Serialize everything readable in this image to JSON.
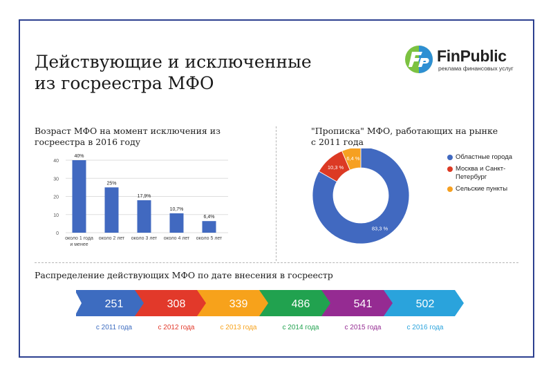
{
  "title": {
    "line1": "Действующие и исключенные",
    "line2": "из госреестра МФО"
  },
  "logo": {
    "name": "FinPublic",
    "tagline": "реклама финансовых услуг",
    "colors": {
      "green": "#7cc241",
      "blue": "#2e8fd3"
    }
  },
  "bar_section": {
    "title_line1": "Возраст МФО на момент исключения из",
    "title_line2": "госреестра в 2016 году"
  },
  "pie_section": {
    "title_line1": "\"Прописка\" МФО, работающих на рынке",
    "title_line2": "с 2011 года"
  },
  "timeline_section": {
    "title": "Распределение действующих МФО по дате внесения в госреестр"
  },
  "chart_data": [
    {
      "type": "bar",
      "categories": [
        [
          "около 1 года",
          "и менее"
        ],
        [
          "около 2 лет"
        ],
        [
          "около 3 лет"
        ],
        [
          "около 4 лет"
        ],
        [
          "около 5 лет"
        ]
      ],
      "values": [
        40,
        25,
        17.9,
        10.7,
        6.4
      ],
      "data_labels": [
        "40%",
        "25%",
        "17,9%",
        "10,7%",
        "6,4%"
      ],
      "yticks": [
        "0",
        "10",
        "20",
        "30",
        "40"
      ],
      "ylim": [
        0,
        40
      ],
      "grid": true,
      "color": "#4169c0"
    },
    {
      "type": "pie",
      "style": "donut",
      "legend_position": "right",
      "slices": [
        {
          "name": "Областные города",
          "legend": [
            "Областные города"
          ],
          "value": 83.3,
          "label": "83,3 %",
          "color": "#4169c0"
        },
        {
          "name": "Москва и Санкт-Петербург",
          "legend": [
            "Москва и Санкт-",
            "Петербург"
          ],
          "value": 10.3,
          "label": "10,3 %",
          "color": "#dc3a24"
        },
        {
          "name": "Сельские пункты",
          "legend": [
            "Сельские пункты"
          ],
          "value": 6.4,
          "label": "6,4 %",
          "color": "#f6a021"
        }
      ]
    },
    {
      "type": "bar",
      "style": "arrow-timeline",
      "categories": [
        "с 2011 года",
        "с 2012 года",
        "с 2013 года",
        "с 2014 года",
        "с 2015 года",
        "с 2016 года"
      ],
      "values": [
        251,
        308,
        339,
        486,
        541,
        502
      ],
      "colors": [
        "#3d6cc0",
        "#e2392a",
        "#f7a21b",
        "#21a24f",
        "#952b92",
        "#2aa3dc"
      ]
    }
  ]
}
